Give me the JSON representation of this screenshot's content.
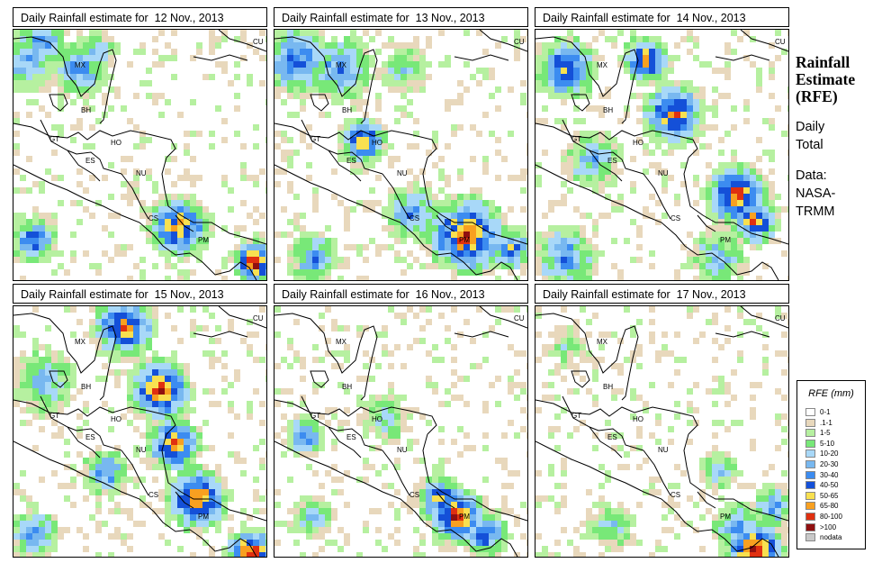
{
  "panels": [
    {
      "title": "Daily Rainfall estimate for  12 Nov., 2013"
    },
    {
      "title": "Daily Rainfall estimate for  13 Nov., 2013"
    },
    {
      "title": "Daily Rainfall estimate for  14 Nov., 2013"
    },
    {
      "title": "Daily Rainfall estimate for  15 Nov., 2013"
    },
    {
      "title": "Daily Rainfall estimate for  16 Nov., 2013"
    },
    {
      "title": "Daily Rainfall estimate for  17 Nov., 2013"
    }
  ],
  "map_labels": [
    "MX",
    "CU",
    "BH",
    "GT",
    "HO",
    "ES",
    "NU",
    "CS",
    "PM"
  ],
  "side": {
    "title_line1": "Rainfall",
    "title_line2": "Estimate",
    "title_line3": "(RFE)",
    "daily_line1": "Daily",
    "daily_line2": "Total",
    "data_line1": "Data:",
    "data_line2": "NASA-",
    "data_line3": "TRMM"
  },
  "legend": {
    "title": "RFE (mm)",
    "items": [
      {
        "label": "0-1",
        "color": "#ffffff"
      },
      {
        "label": ".1-1",
        "color": "#e8d8bc"
      },
      {
        "label": "1-5",
        "color": "#b6f0a0"
      },
      {
        "label": "5-10",
        "color": "#78e878"
      },
      {
        "label": "10-20",
        "color": "#a8d8f8"
      },
      {
        "label": "20-30",
        "color": "#78b8f0"
      },
      {
        "label": "30-40",
        "color": "#3c8cf0"
      },
      {
        "label": "40-50",
        "color": "#1450d8"
      },
      {
        "label": "50-65",
        "color": "#f8e050"
      },
      {
        "label": "65-80",
        "color": "#f8a020"
      },
      {
        "label": "80-100",
        "color": "#e03010"
      },
      {
        "label": ">100",
        "color": "#901010"
      },
      {
        "label": "nodata",
        "color": "#c8c8c8"
      }
    ]
  }
}
